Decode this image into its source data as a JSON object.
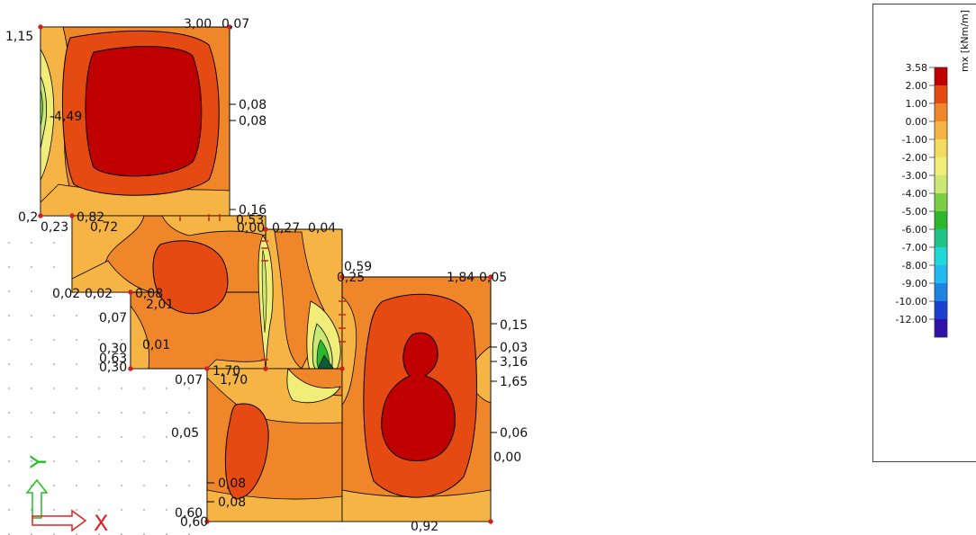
{
  "legend": {
    "title": "mx [kNm/m]",
    "entries": [
      {
        "label": "3.58",
        "color": "#c00000"
      },
      {
        "label": "2.00",
        "color": "#e44a12"
      },
      {
        "label": "1.00",
        "color": "#f0862a"
      },
      {
        "label": "0.00",
        "color": "#f5b444"
      },
      {
        "label": "-1.00",
        "color": "#f2dc5e"
      },
      {
        "label": "-2.00",
        "color": "#f0ee78"
      },
      {
        "label": "-3.00",
        "color": "#c9e874"
      },
      {
        "label": "-4.00",
        "color": "#7ccf44"
      },
      {
        "label": "-5.00",
        "color": "#2eb82e"
      },
      {
        "label": "-6.00",
        "color": "#20c48a"
      },
      {
        "label": "-7.00",
        "color": "#20d8d8"
      },
      {
        "label": "-8.00",
        "color": "#22b8f0"
      },
      {
        "label": "-9.00",
        "color": "#1e82e0"
      },
      {
        "label": "-10.00",
        "color": "#1a3fd0"
      },
      {
        "label": "-12.00",
        "color": "#3010a8"
      }
    ]
  },
  "axes": {
    "x_label": "X",
    "y_label": "Y",
    "x_color": "#e02020",
    "y_color": "#20c020"
  },
  "values": [
    "1,15",
    "3,00",
    "0,07",
    "-4,49",
    "0,08",
    "0,08",
    "0,16",
    "0,53",
    "0,2",
    "0,23",
    "0,82",
    "0,72",
    "0,00",
    "0,27",
    "0,04",
    "0,59",
    "0,25",
    "1,84",
    "0,05",
    "0,02",
    "0,02",
    "0,08",
    "2,01",
    "0,07",
    "0,15",
    "0,30",
    "0,01",
    "0,03",
    "0,63",
    "3,16",
    "0,30",
    "0,07",
    "1,70",
    "1,70",
    "1,65",
    "0,05",
    "0,06",
    "0,00",
    "0,08",
    "0,08",
    "0,60",
    "0,60",
    "0,92"
  ]
}
